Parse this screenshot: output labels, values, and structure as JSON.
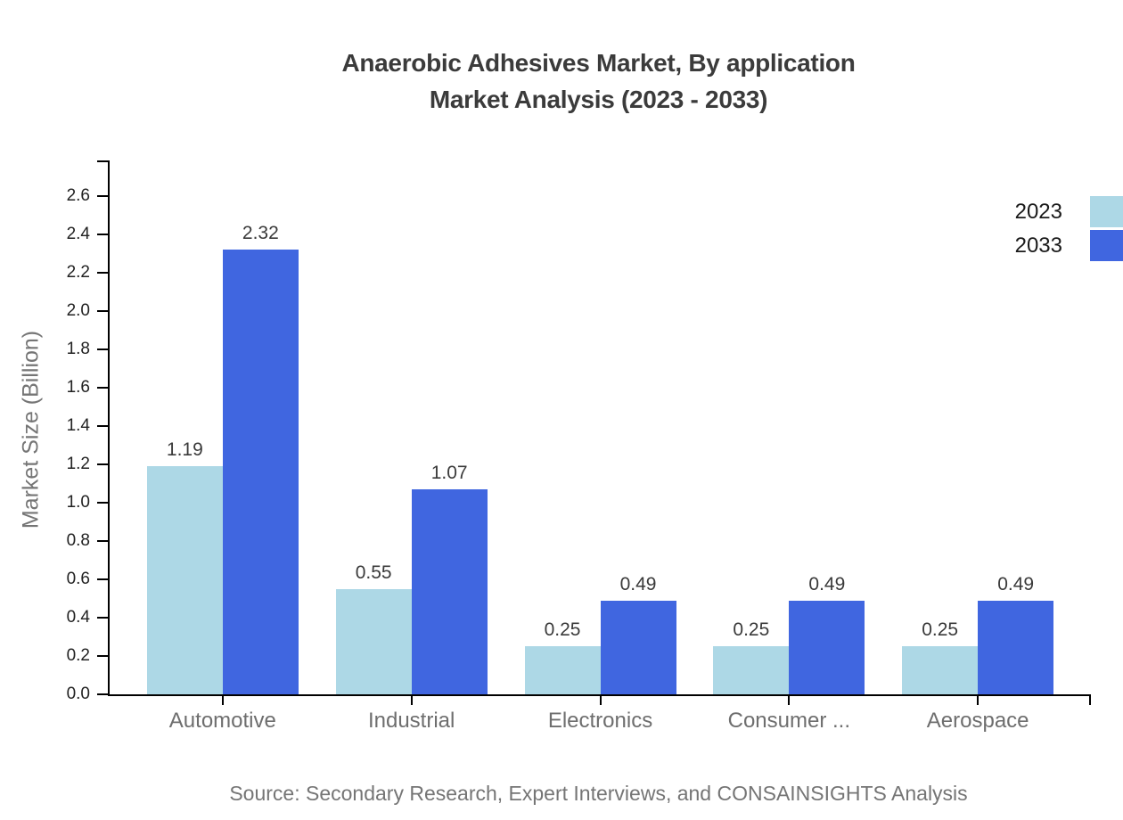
{
  "chart_data": {
    "type": "bar",
    "title_line1": "Anaerobic Adhesives Market, By application",
    "title_line2": "Market Analysis (2023 - 2033)",
    "ylabel": "Market Size (Billion)",
    "categories": [
      "Automotive",
      "Industrial",
      "Electronics",
      "Consumer ...",
      "Aerospace"
    ],
    "series": [
      {
        "name": "2023",
        "color": "#ADD8E6",
        "values": [
          1.19,
          0.55,
          0.25,
          0.25,
          0.25
        ]
      },
      {
        "name": "2033",
        "color": "#4066E0",
        "values": [
          2.32,
          1.07,
          0.49,
          0.49,
          0.49
        ]
      }
    ],
    "value_labels": [
      [
        "1.19",
        "0.55",
        "0.25",
        "0.25",
        "0.25"
      ],
      [
        "2.32",
        "1.07",
        "0.49",
        "0.49",
        "0.49"
      ]
    ],
    "ytick_labels": [
      "0.0",
      "0.2",
      "0.4",
      "0.6",
      "0.8",
      "1.0",
      "1.2",
      "1.4",
      "1.6",
      "1.8",
      "2.0",
      "2.2",
      "2.4",
      "2.6"
    ],
    "ytick_step": 0.2,
    "ylim": [
      0,
      2.786
    ],
    "grid": false,
    "legend_position": "top-right",
    "source": "Source: Secondary Research, Expert Interviews, and CONSAINSIGHTS Analysis"
  }
}
